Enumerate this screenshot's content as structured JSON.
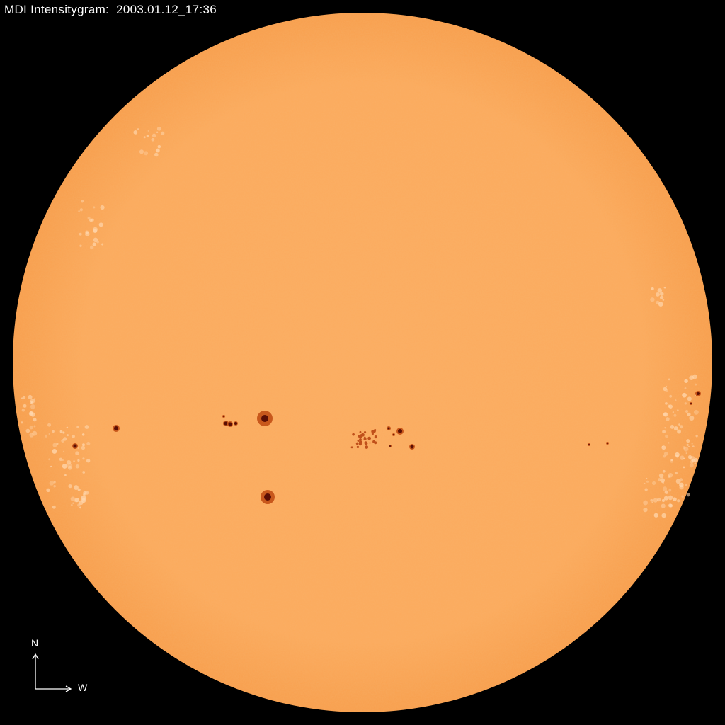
{
  "title": "MDI Intensitygram:  2003.01.12_17:36",
  "compass": {
    "north": "N",
    "west": "W"
  },
  "colors": {
    "background": "#000000",
    "disk": "#fcaa5e",
    "limb": "#f59a48",
    "umbra": "#5a0e04",
    "penumbra": "#c8581c",
    "faculae": "#ffd8b0",
    "text": "#ffffff"
  }
}
